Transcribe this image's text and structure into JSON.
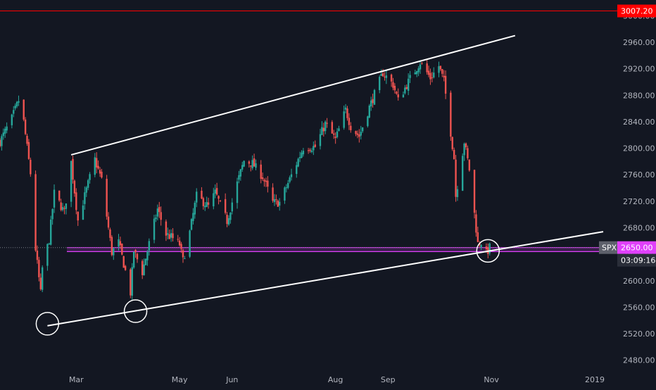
{
  "chart_data": {
    "type": "candlestick",
    "symbol": "SPX",
    "colors": {
      "background": "#131722",
      "up": "#26a69a",
      "down": "#ef5350",
      "axis_text": "#b2b5be",
      "trendline": "#ffffff",
      "resistance_line": "#ff0000",
      "support_band": "#e040fb",
      "last_price_badge": "#e040fb",
      "symbol_badge": "#5d606b",
      "countdown_badge": "#2a2e39",
      "resistance_badge": "#ff0000"
    },
    "y_axis": {
      "min": 2460,
      "max": 3020,
      "ticks": [
        "2480.00",
        "2520.00",
        "2560.00",
        "2600.00",
        "2640.00",
        "2680.00",
        "2720.00",
        "2760.00",
        "2800.00",
        "2840.00",
        "2880.00",
        "2920.00",
        "2960.00",
        "3000.00"
      ]
    },
    "x_axis": {
      "start": "2018-01-15",
      "end": "2019-01-06",
      "labels": [
        {
          "text": "Mar",
          "date": "2018-03-01"
        },
        {
          "text": "May",
          "date": "2018-05-01"
        },
        {
          "text": "Jun",
          "date": "2018-06-01"
        },
        {
          "text": "Aug",
          "date": "2018-08-01"
        },
        {
          "text": "Sep",
          "date": "2018-09-01"
        },
        {
          "text": "Nov",
          "date": "2018-11-01"
        },
        {
          "text": "2019",
          "date": "2019-01-01"
        }
      ]
    },
    "price_path": [
      [
        "2018-01-15",
        2810
      ],
      [
        "2018-01-22",
        2845
      ],
      [
        "2018-01-26",
        2872
      ],
      [
        "2018-01-29",
        2840
      ],
      [
        "2018-02-02",
        2762
      ],
      [
        "2018-02-05",
        2648
      ],
      [
        "2018-02-08",
        2581
      ],
      [
        "2018-02-09",
        2619
      ],
      [
        "2018-02-13",
        2662
      ],
      [
        "2018-02-16",
        2732
      ],
      [
        "2018-02-22",
        2703
      ],
      [
        "2018-02-26",
        2779
      ],
      [
        "2018-03-02",
        2691
      ],
      [
        "2018-03-06",
        2728
      ],
      [
        "2018-03-12",
        2783
      ],
      [
        "2018-03-16",
        2752
      ],
      [
        "2018-03-22",
        2643
      ],
      [
        "2018-03-26",
        2658
      ],
      [
        "2018-04-02",
        2582
      ],
      [
        "2018-04-04",
        2645
      ],
      [
        "2018-04-09",
        2613
      ],
      [
        "2018-04-13",
        2656
      ],
      [
        "2018-04-18",
        2708
      ],
      [
        "2018-04-23",
        2670
      ],
      [
        "2018-04-26",
        2666
      ],
      [
        "2018-05-01",
        2655
      ],
      [
        "2018-05-03",
        2630
      ],
      [
        "2018-05-07",
        2673
      ],
      [
        "2018-05-11",
        2728
      ],
      [
        "2018-05-18",
        2712
      ],
      [
        "2018-05-22",
        2733
      ],
      [
        "2018-05-29",
        2690
      ],
      [
        "2018-06-04",
        2747
      ],
      [
        "2018-06-08",
        2781
      ],
      [
        "2018-06-13",
        2777
      ],
      [
        "2018-06-19",
        2757
      ],
      [
        "2018-06-25",
        2718
      ],
      [
        "2018-06-29",
        2718
      ],
      [
        "2018-07-06",
        2759
      ],
      [
        "2018-07-13",
        2801
      ],
      [
        "2018-07-20",
        2802
      ],
      [
        "2018-07-26",
        2837
      ],
      [
        "2018-08-01",
        2813
      ],
      [
        "2018-08-07",
        2858
      ],
      [
        "2018-08-10",
        2833
      ],
      [
        "2018-08-15",
        2818
      ],
      [
        "2018-08-21",
        2862
      ],
      [
        "2018-08-29",
        2914
      ],
      [
        "2018-09-04",
        2896
      ],
      [
        "2018-09-07",
        2872
      ],
      [
        "2018-09-14",
        2905
      ],
      [
        "2018-09-20",
        2930
      ],
      [
        "2018-09-26",
        2906
      ],
      [
        "2018-10-01",
        2924
      ],
      [
        "2018-10-04",
        2901
      ],
      [
        "2018-10-10",
        2785
      ],
      [
        "2018-10-11",
        2728
      ],
      [
        "2018-10-16",
        2810
      ],
      [
        "2018-10-19",
        2768
      ],
      [
        "2018-10-24",
        2656
      ],
      [
        "2018-10-26",
        2658
      ],
      [
        "2018-10-29",
        2641
      ],
      [
        "2018-10-31",
        2650
      ]
    ],
    "annotations": {
      "upper_trendline": [
        [
          "2018-02-26",
          2790
        ],
        [
          "2018-11-15",
          2970
        ]
      ],
      "lower_trendline": [
        [
          "2018-02-12",
          2532
        ],
        [
          "2019-01-06",
          2674
        ]
      ],
      "resistance_level": 3007.2,
      "support_band": [
        2644,
        2650
      ],
      "circles": [
        {
          "date": "2018-02-12",
          "price": 2535
        },
        {
          "date": "2018-04-05",
          "price": 2554
        },
        {
          "date": "2018-10-30",
          "price": 2645
        }
      ]
    },
    "badges": {
      "symbol": "SPX",
      "last_price": "2650.00",
      "countdown": "03:09:16",
      "resistance": "3007.20"
    }
  }
}
